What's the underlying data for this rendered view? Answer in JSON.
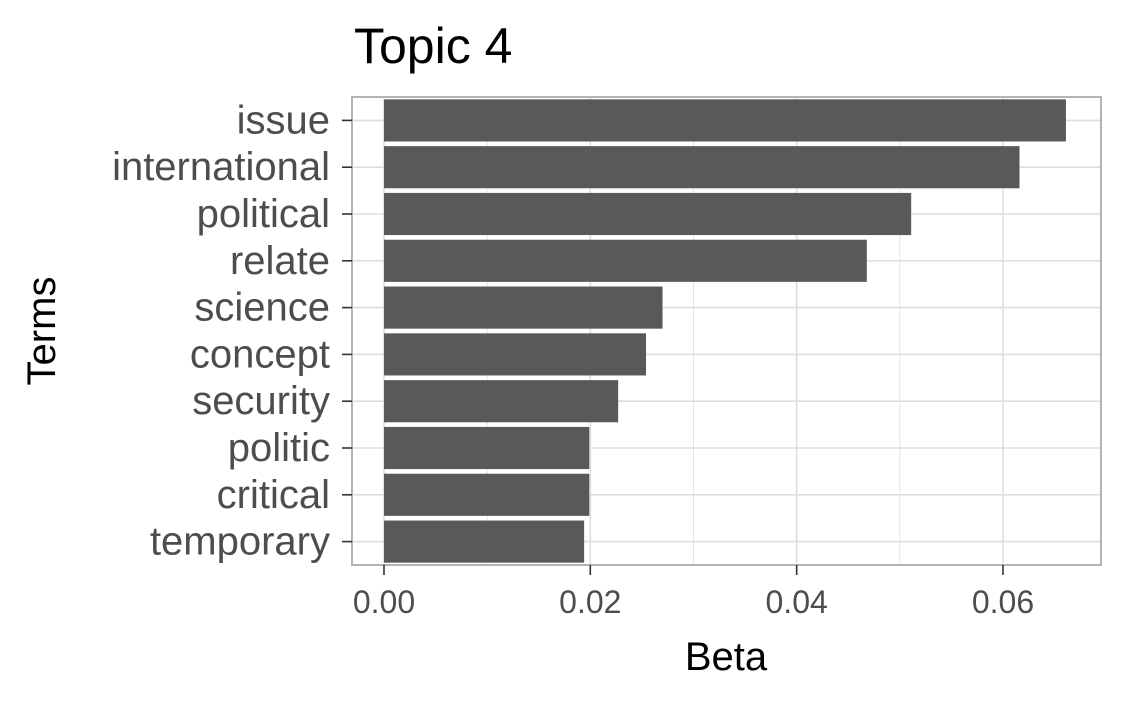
{
  "chart_data": {
    "type": "bar",
    "orientation": "horizontal",
    "title": "Topic 4",
    "xlabel": "Beta",
    "ylabel": "Terms",
    "categories": [
      "issue",
      "international",
      "political",
      "relate",
      "science",
      "concept",
      "security",
      "politic",
      "critical",
      "temporary"
    ],
    "values": [
      0.0661,
      0.0616,
      0.0511,
      0.0468,
      0.027,
      0.0254,
      0.0227,
      0.0199,
      0.0199,
      0.0194
    ],
    "xlim": [
      -0.0031,
      0.0695
    ],
    "xticks": [
      0.0,
      0.02,
      0.04,
      0.06
    ],
    "xtick_labels": [
      "0.00",
      "0.02",
      "0.04",
      "0.06"
    ],
    "grid": true,
    "theme": "light",
    "bar_color": "#595959",
    "grid_color": "#dedede",
    "border_color": "#b3b3b3"
  }
}
